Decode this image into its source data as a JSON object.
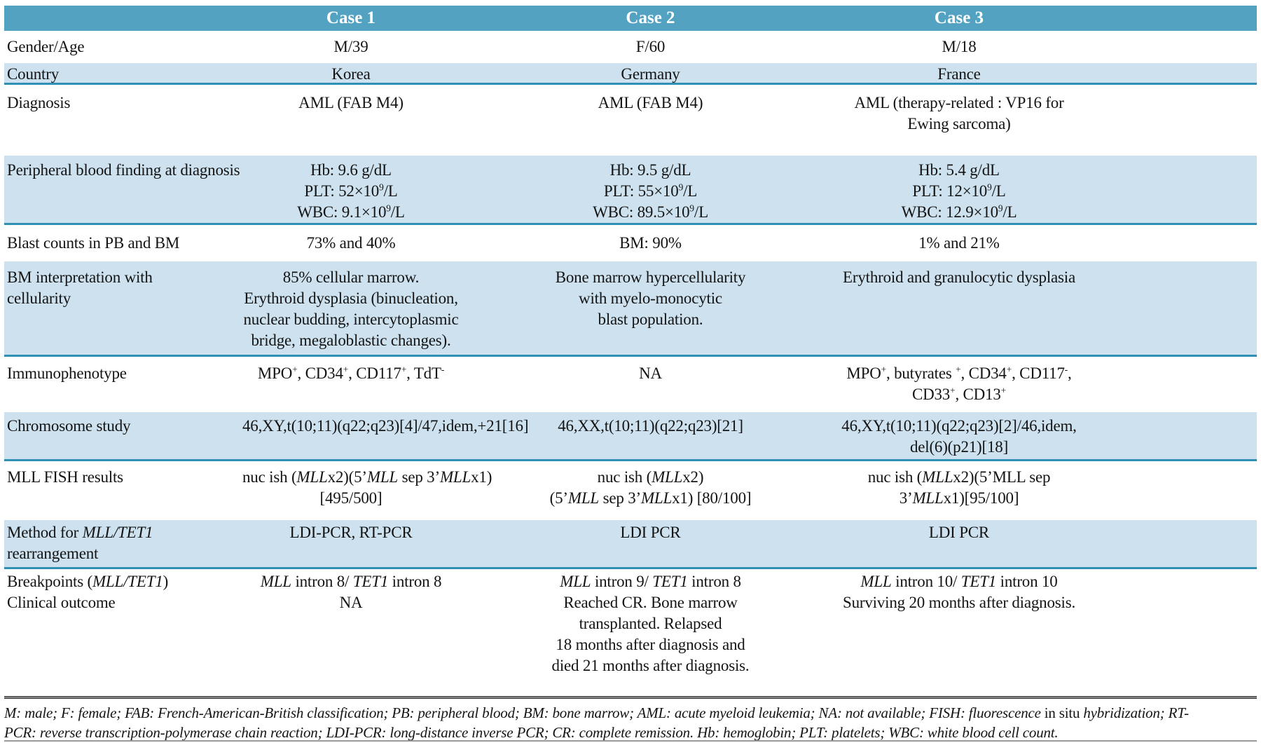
{
  "colors": {
    "teal": "#53a2c2",
    "rowblue": "#cde1ee",
    "line": "#2f90b4",
    "text": "#141414",
    "rule": "#3f3f3f"
  },
  "table": {
    "header": [
      "",
      "Case 1",
      "Case 2",
      "Case 3"
    ],
    "rows": [
      {
        "id": "gender",
        "shade": false,
        "label": [
          [
            "Gender/Age"
          ]
        ],
        "cells": [
          [
            [
              "M/39"
            ]
          ],
          [
            [
              "F/60"
            ]
          ],
          [
            [
              "M/18"
            ]
          ]
        ]
      },
      {
        "id": "country",
        "shade": true,
        "label": [
          [
            "Country"
          ]
        ],
        "cells": [
          [
            [
              "Korea"
            ]
          ],
          [
            [
              "Germany"
            ]
          ],
          [
            [
              "France"
            ]
          ]
        ]
      },
      {
        "id": "diagnosis",
        "shade": false,
        "label": [
          [
            "Diagnosis"
          ]
        ],
        "cells": [
          [
            [
              "AML (FAB M4)"
            ]
          ],
          [
            [
              "AML (FAB M4)"
            ]
          ],
          [
            [
              "AML (therapy-related : VP16 for"
            ],
            [
              "Ewing sarcoma)"
            ]
          ]
        ]
      },
      {
        "id": "pbf",
        "shade": true,
        "label": [
          [
            "Peripheral blood finding at diagnosis"
          ]
        ],
        "cells": [
          [
            [
              "Hb: 9.6 g/dL"
            ],
            [
              "PLT: 52×10",
              {
                "t": "9",
                "sup": true
              },
              "/L"
            ],
            [
              "WBC: 9.1×10",
              {
                "t": "9",
                "sup": true
              },
              "/L"
            ]
          ],
          [
            [
              "Hb: 9.5 g/dL"
            ],
            [
              "PLT: 55×10",
              {
                "t": "9",
                "sup": true
              },
              "/L"
            ],
            [
              "WBC: 89.5×10",
              {
                "t": "9",
                "sup": true
              },
              "/L"
            ]
          ],
          [
            [
              "Hb: 5.4 g/dL"
            ],
            [
              "PLT: 12×10",
              {
                "t": "9",
                "sup": true
              },
              "/L"
            ],
            [
              "WBC: 12.9×10",
              {
                "t": "9",
                "sup": true
              },
              "/L"
            ]
          ]
        ]
      },
      {
        "id": "blast",
        "shade": false,
        "label": [
          [
            "Blast counts in PB and BM"
          ]
        ],
        "cells": [
          [
            [
              "73% and 40%"
            ]
          ],
          [
            [
              "BM: 90%"
            ]
          ],
          [
            [
              "1% and 21%"
            ]
          ]
        ]
      },
      {
        "id": "bmi",
        "shade": true,
        "label": [
          [
            "BM interpretation with"
          ],
          [
            "cellularity"
          ]
        ],
        "cells": [
          [
            [
              "85% cellular marrow."
            ],
            [
              "Erythroid dysplasia (binucleation,"
            ],
            [
              "nuclear budding, intercytoplasmic"
            ],
            [
              "bridge, megaloblastic changes)."
            ]
          ],
          [
            [
              "Bone marrow hypercellularity"
            ],
            [
              "with myelo-monocytic"
            ],
            [
              "blast population."
            ]
          ],
          [
            [
              "Erythroid and granulocytic dysplasia"
            ]
          ]
        ]
      },
      {
        "id": "immuno",
        "shade": false,
        "label": [
          [
            "Immunophenotype"
          ]
        ],
        "cells": [
          [
            [
              "MPO",
              {
                "t": "+",
                "sup": true
              },
              ", CD34",
              {
                "t": "+",
                "sup": true
              },
              ", CD117",
              {
                "t": "+",
                "sup": true
              },
              ", TdT",
              {
                "t": "-",
                "sup": true
              }
            ]
          ],
          [
            [
              "NA"
            ]
          ],
          [
            [
              "MPO",
              {
                "t": "+",
                "sup": true
              },
              ", butyrates ",
              {
                "t": "+",
                "sup": true
              },
              ", CD34",
              {
                "t": "+",
                "sup": true
              },
              ", CD117",
              {
                "t": "-",
                "sup": true
              },
              ","
            ],
            [
              "CD33",
              {
                "t": "+",
                "sup": true
              },
              ", CD13",
              {
                "t": "+",
                "sup": true
              }
            ]
          ]
        ]
      },
      {
        "id": "chromo",
        "shade": true,
        "label": [
          [
            "Chromosome study"
          ]
        ],
        "cells": [
          [
            [
              "46,XY,t(10;11)(q22;q23)[4]/47,idem,+21[16]"
            ]
          ],
          [
            [
              "46,XX,t(10;11)(q22;q23)[21]"
            ]
          ],
          [
            [
              "46,XY,t(10;11)(q22;q23)[2]/46,idem,"
            ],
            [
              "del(6)(p21)[18]"
            ]
          ]
        ]
      },
      {
        "id": "fish",
        "shade": false,
        "label": [
          [
            "MLL FISH results"
          ]
        ],
        "cells": [
          [
            [
              "nuc ish (",
              {
                "t": "MLL",
                "i": true
              },
              "x2)(5’",
              {
                "t": "MLL",
                "i": true
              },
              " sep 3’",
              {
                "t": "MLL",
                "i": true
              },
              "x1)"
            ],
            [
              "[495/500]"
            ]
          ],
          [
            [
              "nuc ish (",
              {
                "t": "MLL",
                "i": true
              },
              "x2)"
            ],
            [
              "(5’",
              {
                "t": "MLL",
                "i": true
              },
              " sep 3’",
              {
                "t": "MLL",
                "i": true
              },
              "x1) [80/100]"
            ]
          ],
          [
            [
              "nuc ish (",
              {
                "t": "MLL",
                "i": true
              },
              "x2)(5’MLL sep"
            ],
            [
              "3’",
              {
                "t": "MLL",
                "i": true
              },
              "x1)[95/100]"
            ]
          ]
        ]
      },
      {
        "id": "method",
        "shade": true,
        "label": [
          [
            "Method for ",
            {
              "t": "MLL/TET1",
              "i": true
            }
          ],
          [
            "rearrangement"
          ]
        ],
        "cells": [
          [
            [
              "LDI-PCR, RT-PCR"
            ]
          ],
          [
            [
              "LDI PCR"
            ]
          ],
          [
            [
              "LDI PCR"
            ]
          ]
        ]
      },
      {
        "id": "break",
        "shade": false,
        "label": [
          [
            "Breakpoints (",
            {
              "t": "MLL/TET1",
              "i": true
            },
            ")"
          ],
          [
            "Clinical outcome"
          ]
        ],
        "cells": [
          [
            [
              {
                "t": "MLL",
                "i": true
              },
              " intron 8/ ",
              {
                "t": "TET1",
                "i": true
              },
              " intron 8"
            ],
            [
              "NA"
            ]
          ],
          [
            [
              {
                "t": "MLL",
                "i": true
              },
              " intron 9/ ",
              {
                "t": "TET1",
                "i": true
              },
              " intron 8"
            ],
            [
              "Reached CR. Bone marrow"
            ],
            [
              "transplanted. Relapsed"
            ],
            [
              "18 months after diagnosis and"
            ],
            [
              "died 21 months after diagnosis."
            ]
          ],
          [
            [
              {
                "t": "MLL",
                "i": true
              },
              " intron 10/ ",
              {
                "t": "TET1",
                "i": true
              },
              " intron 10"
            ],
            [
              "Surviving 20 months after diagnosis."
            ]
          ]
        ]
      }
    ]
  },
  "footnote": {
    "lines": [
      [
        "M: male; F: female; FAB: French-American-British classification; PB: peripheral blood; BM: bone marrow; AML: acute myeloid leukemia; NA: not available; FISH: fluorescence ",
        {
          "t": "in situ",
          "up": true
        },
        " hybridization; RT-"
      ],
      [
        "PCR: reverse transcription-polymerase chain reaction; LDI-PCR: long-distance inverse PCR; CR: complete remission. Hb: hemoglobin; PLT: platelets; WBC: white blood cell count."
      ]
    ]
  }
}
